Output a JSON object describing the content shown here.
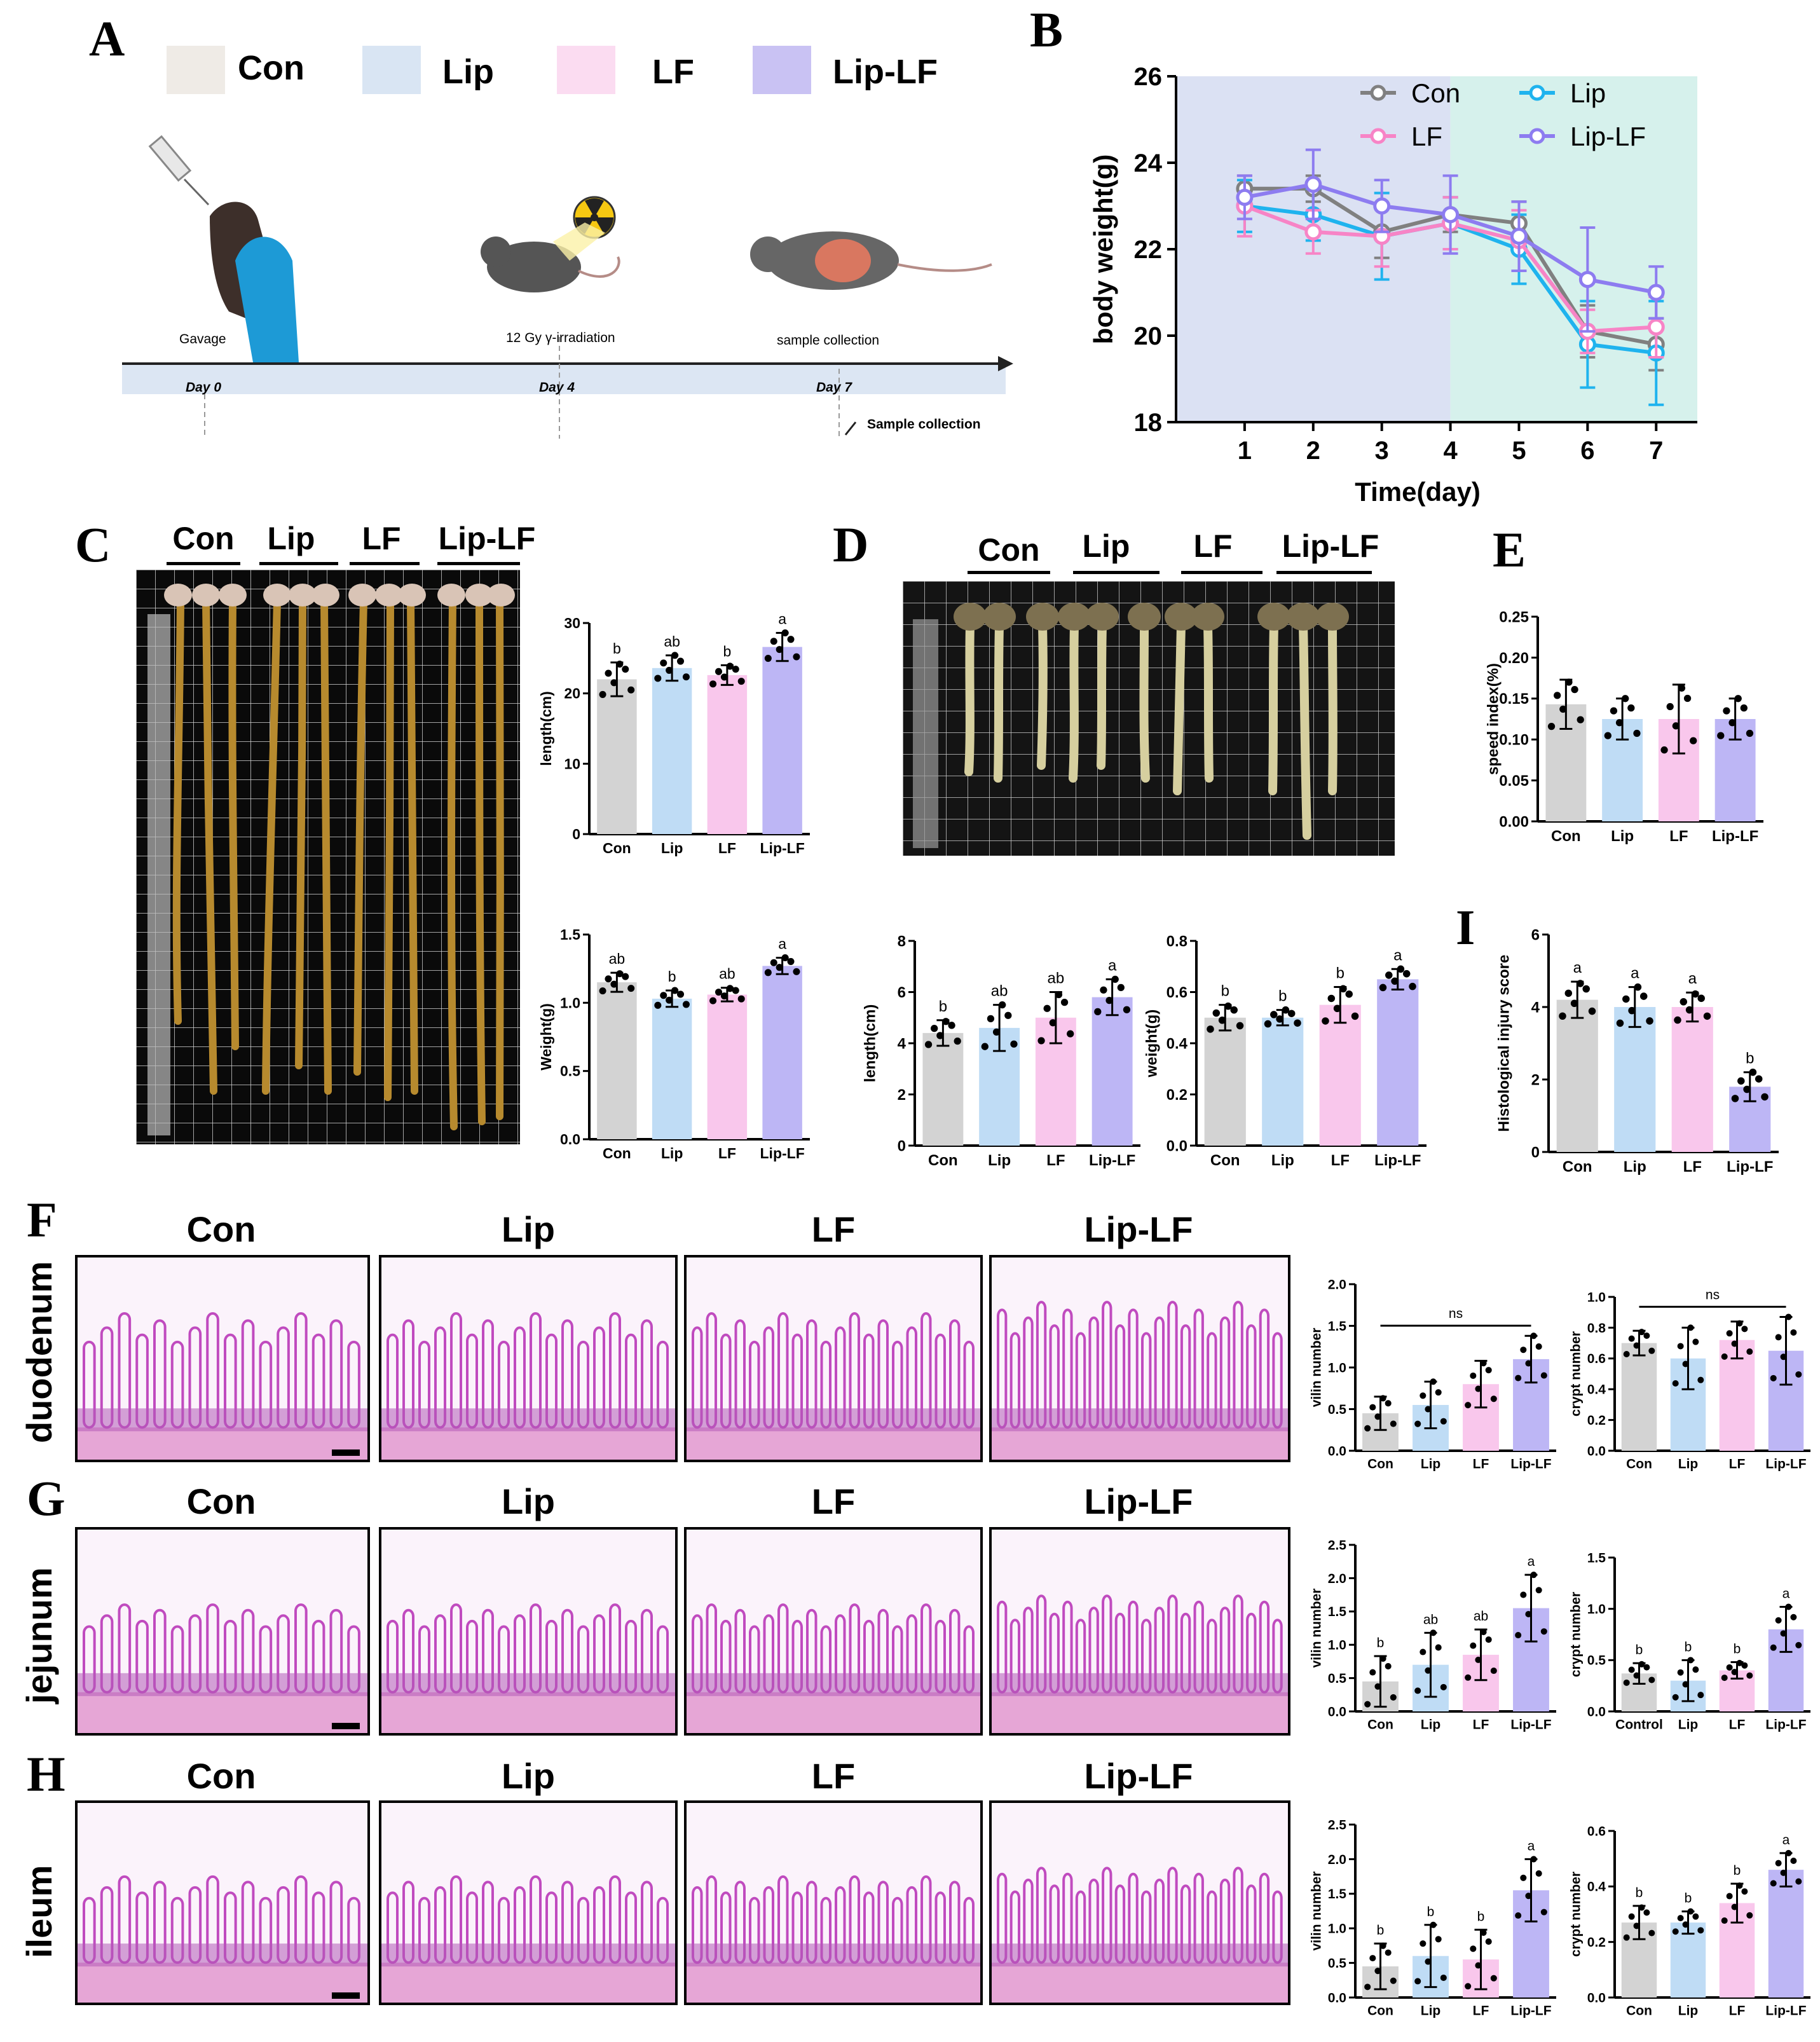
{
  "figure": {
    "panels": {
      "A": "A",
      "B": "B",
      "C": "C",
      "D": "D",
      "E": "E",
      "F": "F",
      "G": "G",
      "H": "H",
      "I": "I"
    }
  },
  "legend": {
    "items": [
      {
        "label": "Con",
        "color": "#efebe6"
      },
      {
        "label": "Lip",
        "color": "#d9e5f3"
      },
      {
        "label": "LF",
        "color": "#fbdcf1"
      },
      {
        "label": "Lip-LF",
        "color": "#c9c2f3"
      }
    ]
  },
  "timeline": {
    "steps": [
      {
        "caption": "Gavage",
        "day": "Day 0"
      },
      {
        "caption": "12 Gy γ-irradiation",
        "day": "Day 4"
      },
      {
        "caption": "sample collection",
        "day": "Day 7"
      }
    ],
    "note": "Sample collection"
  },
  "photos": {
    "c_groups": [
      "Con",
      "Lip",
      "LF",
      "Lip-LF"
    ],
    "d_groups": [
      "Con",
      "Lip",
      "LF",
      "Lip-LF"
    ]
  },
  "histology": {
    "columns": [
      "Con",
      "Lip",
      "LF",
      "Lip-LF"
    ],
    "rows": [
      "duodenum",
      "jejunum",
      "ileum"
    ]
  },
  "colors": {
    "Con": "#d3d3d3",
    "Lip": "#bfdcf5",
    "LF": "#f9c7ec",
    "Lip-LF": "#bdb6f5",
    "line_Con": "#808080",
    "line_Lip": "#1fb3ee",
    "line_LF": "#f784c6",
    "line_LipLF": "#8d7cf0"
  },
  "chart_data": [
    {
      "id": "B",
      "type": "line",
      "xlabel": "Time(day)",
      "ylabel": "body weight(g)",
      "x": [
        1,
        2,
        3,
        4,
        5,
        6,
        7
      ],
      "xlim": [
        0,
        7.6
      ],
      "ylim": [
        18,
        26
      ],
      "yticks": [
        18,
        20,
        22,
        24,
        26
      ],
      "series": [
        {
          "name": "Con",
          "color": "#808080",
          "values": [
            23.4,
            23.4,
            22.4,
            22.8,
            22.6,
            20.1,
            19.8
          ],
          "err": [
            0.3,
            0.3,
            0.6,
            0.4,
            0.5,
            0.6,
            0.6
          ]
        },
        {
          "name": "Lip",
          "color": "#1fb3ee",
          "values": [
            23.0,
            22.8,
            22.3,
            22.6,
            22.0,
            19.8,
            19.6
          ],
          "err": [
            0.6,
            0.6,
            1.0,
            0.6,
            0.8,
            1.0,
            1.2
          ]
        },
        {
          "name": "LF",
          "color": "#f784c6",
          "values": [
            23.0,
            22.4,
            22.3,
            22.6,
            22.2,
            20.1,
            20.2
          ],
          "err": [
            0.7,
            0.5,
            0.7,
            0.6,
            0.7,
            0.5,
            0.7
          ]
        },
        {
          "name": "Lip-LF",
          "color": "#8d7cf0",
          "values": [
            23.2,
            23.5,
            23.0,
            22.8,
            22.3,
            21.3,
            21.0
          ],
          "err": [
            0.5,
            0.8,
            0.6,
            0.9,
            0.8,
            1.2,
            0.6
          ]
        }
      ]
    },
    {
      "id": "C1",
      "type": "bar",
      "ylabel": "length(cm)",
      "ylim": [
        0,
        30
      ],
      "yticks": [
        0,
        10,
        20,
        30
      ],
      "categories": [
        "Con",
        "Lip",
        "LF",
        "Lip-LF"
      ],
      "values": [
        22,
        23.6,
        22.6,
        26.6
      ],
      "err": [
        2.4,
        1.8,
        1.4,
        2.0
      ],
      "letters": [
        "b",
        "ab",
        "b",
        "a"
      ]
    },
    {
      "id": "C2",
      "type": "bar",
      "ylabel": "Weight(g)",
      "ylim": [
        0,
        1.5
      ],
      "yticks": [
        0.0,
        0.5,
        1.0,
        1.5
      ],
      "categories": [
        "Con",
        "Lip",
        "LF",
        "Lip-LF"
      ],
      "values": [
        1.15,
        1.03,
        1.06,
        1.27
      ],
      "err": [
        0.07,
        0.06,
        0.05,
        0.06
      ],
      "letters": [
        "ab",
        "b",
        "ab",
        "a"
      ]
    },
    {
      "id": "E",
      "type": "bar",
      "ylabel": "speed index(%)",
      "ylim": [
        0,
        0.25
      ],
      "yticks": [
        0.0,
        0.05,
        0.1,
        0.15,
        0.2,
        0.25
      ],
      "categories": [
        "Con",
        "Lip",
        "LF",
        "Lip-LF"
      ],
      "values": [
        0.143,
        0.125,
        0.125,
        0.125
      ],
      "err": [
        0.03,
        0.025,
        0.042,
        0.025
      ],
      "letters": []
    },
    {
      "id": "D1",
      "type": "bar",
      "ylabel": "length(cm)",
      "ylim": [
        0,
        8
      ],
      "yticks": [
        0,
        2,
        4,
        6,
        8
      ],
      "categories": [
        "Con",
        "Lip",
        "LF",
        "Lip-LF"
      ],
      "values": [
        4.4,
        4.6,
        5.0,
        5.8
      ],
      "err": [
        0.5,
        0.9,
        1.0,
        0.7
      ],
      "letters": [
        "b",
        "ab",
        "ab",
        "a"
      ]
    },
    {
      "id": "D2",
      "type": "bar",
      "ylabel": "weight(g)",
      "ylim": [
        0,
        0.8
      ],
      "yticks": [
        0.0,
        0.2,
        0.4,
        0.6,
        0.8
      ],
      "categories": [
        "Con",
        "Lip",
        "LF",
        "Lip-LF"
      ],
      "values": [
        0.5,
        0.5,
        0.55,
        0.65
      ],
      "err": [
        0.05,
        0.03,
        0.07,
        0.04
      ],
      "letters": [
        "b",
        "b",
        "b",
        "a"
      ]
    },
    {
      "id": "I",
      "type": "bar",
      "ylabel": "Histological injury score",
      "ylim": [
        0,
        6
      ],
      "yticks": [
        0,
        2,
        4,
        6
      ],
      "categories": [
        "Con",
        "Lip",
        "LF",
        "Lip-LF"
      ],
      "values": [
        4.2,
        4.0,
        4.0,
        1.8
      ],
      "err": [
        0.5,
        0.55,
        0.4,
        0.4
      ],
      "letters": [
        "a",
        "a",
        "a",
        "b"
      ]
    },
    {
      "id": "F1",
      "type": "bar",
      "ylabel": "vilin number",
      "ylim": [
        0,
        2.0
      ],
      "yticks": [
        0.0,
        0.5,
        1.0,
        1.5,
        2.0
      ],
      "categories": [
        "Con",
        "Lip",
        "LF",
        "Lip-LF"
      ],
      "values": [
        0.45,
        0.55,
        0.8,
        1.1
      ],
      "err": [
        0.2,
        0.28,
        0.28,
        0.28
      ],
      "letters": [],
      "ns": "ns"
    },
    {
      "id": "F2",
      "type": "bar",
      "ylabel": "crypt number",
      "ylim": [
        0,
        1.0
      ],
      "yticks": [
        0.0,
        0.2,
        0.4,
        0.6,
        0.8,
        1.0
      ],
      "categories": [
        "Con",
        "Lip",
        "LF",
        "Lip-LF"
      ],
      "values": [
        0.7,
        0.6,
        0.72,
        0.65
      ],
      "err": [
        0.08,
        0.2,
        0.12,
        0.22
      ],
      "letters": [],
      "ns": "ns"
    },
    {
      "id": "G1",
      "type": "bar",
      "ylabel": "vilin number",
      "ylim": [
        0,
        2.5
      ],
      "yticks": [
        0.0,
        0.5,
        1.0,
        1.5,
        2.0,
        2.5
      ],
      "categories": [
        "Con",
        "Lip",
        "LF",
        "Lip-LF"
      ],
      "values": [
        0.45,
        0.7,
        0.85,
        1.55
      ],
      "err": [
        0.38,
        0.48,
        0.38,
        0.5
      ],
      "letters": [
        "b",
        "ab",
        "ab",
        "a"
      ]
    },
    {
      "id": "G2",
      "type": "bar",
      "ylabel": "crypt number",
      "ylim": [
        0,
        1.5
      ],
      "yticks": [
        0.0,
        0.5,
        1.0,
        1.5
      ],
      "categories": [
        "Control",
        "Lip",
        "LF",
        "Lip-LF"
      ],
      "values": [
        0.37,
        0.3,
        0.4,
        0.8
      ],
      "err": [
        0.1,
        0.2,
        0.08,
        0.22
      ],
      "letters": [
        "b",
        "b",
        "b",
        "a"
      ]
    },
    {
      "id": "H1",
      "type": "bar",
      "ylabel": "vilin number",
      "ylim": [
        0,
        2.5
      ],
      "yticks": [
        0.0,
        0.5,
        1.0,
        1.5,
        2.0,
        2.5
      ],
      "categories": [
        "Con",
        "Lip",
        "LF",
        "Lip-LF"
      ],
      "values": [
        0.45,
        0.6,
        0.55,
        1.55
      ],
      "err": [
        0.33,
        0.45,
        0.43,
        0.45
      ],
      "letters": [
        "b",
        "b",
        "b",
        "a"
      ]
    },
    {
      "id": "H2",
      "type": "bar",
      "ylabel": "crypt number",
      "ylim": [
        0,
        0.6
      ],
      "yticks": [
        0.0,
        0.2,
        0.4,
        0.6
      ],
      "categories": [
        "Con",
        "Lip",
        "LF",
        "Lip-LF"
      ],
      "values": [
        0.27,
        0.27,
        0.34,
        0.46
      ],
      "err": [
        0.06,
        0.04,
        0.07,
        0.06
      ],
      "letters": [
        "b",
        "b",
        "b",
        "a"
      ]
    }
  ]
}
